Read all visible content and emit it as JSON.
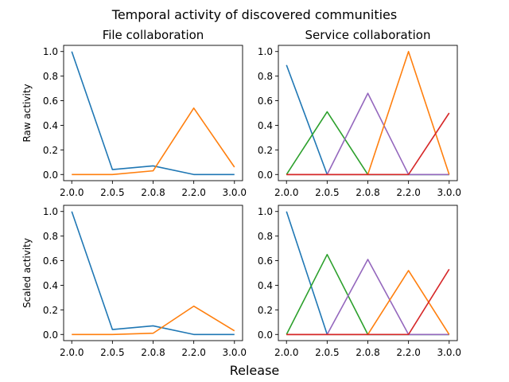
{
  "figure": {
    "suptitle": "Temporal activity of discovered communities",
    "xlabel": "Release"
  },
  "chart_data": [
    {
      "type": "line",
      "title": "File collaboration",
      "xlabel": "",
      "ylabel": "Raw activity",
      "categories": [
        "2.0.0",
        "2.0.5",
        "2.0.8",
        "2.2.0",
        "3.0.0"
      ],
      "ylim": [
        -0.05,
        1.05
      ],
      "yticks": [
        "0.0",
        "0.2",
        "0.4",
        "0.6",
        "0.8",
        "1.0"
      ],
      "series": [
        {
          "color": "#1f77b4",
          "values": [
            1.0,
            0.04,
            0.07,
            0.0,
            0.0
          ]
        },
        {
          "color": "#ff7f0e",
          "values": [
            0.0,
            0.0,
            0.03,
            0.54,
            0.06
          ]
        }
      ]
    },
    {
      "type": "line",
      "title": "Service collaboration",
      "xlabel": "",
      "ylabel": "",
      "categories": [
        "2.0.0",
        "2.0.5",
        "2.0.8",
        "2.2.0",
        "3.0.0"
      ],
      "ylim": [
        -0.05,
        1.05
      ],
      "yticks": [
        "0.0",
        "0.2",
        "0.4",
        "0.6",
        "0.8",
        "1.0"
      ],
      "series": [
        {
          "color": "#1f77b4",
          "values": [
            0.89,
            0.0,
            0.0,
            0.0,
            0.0
          ]
        },
        {
          "color": "#2ca02c",
          "values": [
            0.0,
            0.51,
            0.0,
            0.0,
            0.0
          ]
        },
        {
          "color": "#9467bd",
          "values": [
            0.0,
            0.0,
            0.66,
            0.0,
            0.0
          ]
        },
        {
          "color": "#ff7f0e",
          "values": [
            0.0,
            0.0,
            0.0,
            1.0,
            0.0
          ]
        },
        {
          "color": "#d62728",
          "values": [
            0.0,
            0.0,
            0.0,
            0.0,
            0.5
          ]
        }
      ]
    },
    {
      "type": "line",
      "title": "",
      "xlabel": "",
      "ylabel": "Scaled activity",
      "categories": [
        "2.0.0",
        "2.0.5",
        "2.0.8",
        "2.2.0",
        "3.0.0"
      ],
      "ylim": [
        -0.05,
        1.05
      ],
      "yticks": [
        "0.0",
        "0.2",
        "0.4",
        "0.6",
        "0.8",
        "1.0"
      ],
      "series": [
        {
          "color": "#1f77b4",
          "values": [
            1.0,
            0.04,
            0.07,
            0.0,
            0.0
          ]
        },
        {
          "color": "#ff7f0e",
          "values": [
            0.0,
            0.0,
            0.01,
            0.23,
            0.03
          ]
        }
      ]
    },
    {
      "type": "line",
      "title": "",
      "xlabel": "",
      "ylabel": "",
      "categories": [
        "2.0.0",
        "2.0.5",
        "2.0.8",
        "2.2.0",
        "3.0.0"
      ],
      "ylim": [
        -0.05,
        1.05
      ],
      "yticks": [
        "0.0",
        "0.2",
        "0.4",
        "0.6",
        "0.8",
        "1.0"
      ],
      "series": [
        {
          "color": "#1f77b4",
          "values": [
            1.0,
            0.0,
            0.0,
            0.0,
            0.0
          ]
        },
        {
          "color": "#2ca02c",
          "values": [
            0.0,
            0.65,
            0.0,
            0.0,
            0.0
          ]
        },
        {
          "color": "#9467bd",
          "values": [
            0.0,
            0.0,
            0.61,
            0.0,
            0.0
          ]
        },
        {
          "color": "#ff7f0e",
          "values": [
            0.0,
            0.0,
            0.0,
            0.52,
            0.0
          ]
        },
        {
          "color": "#d62728",
          "values": [
            0.0,
            0.0,
            0.0,
            0.0,
            0.53
          ]
        }
      ]
    }
  ]
}
